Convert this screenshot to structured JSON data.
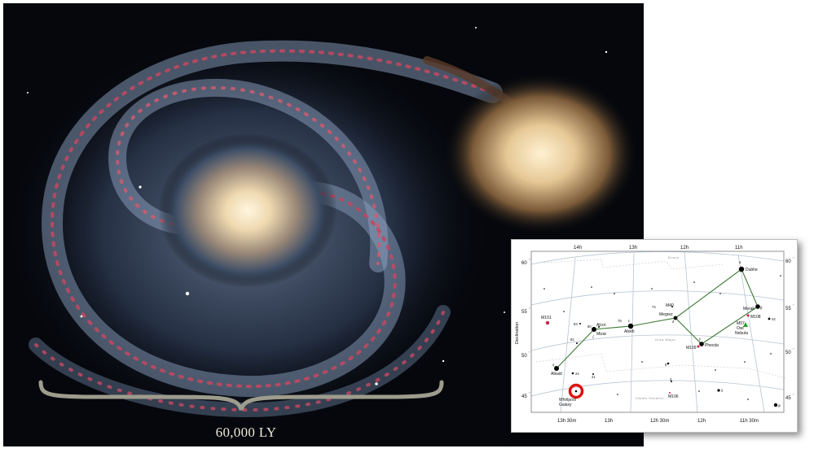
{
  "photo": {
    "scale_label": "60,000 LY"
  },
  "star_chart": {
    "ra_top": [
      "14h",
      "13h",
      "12h",
      "11h"
    ],
    "ra_bottom": [
      "13h 30m",
      "13h",
      "12h 30m",
      "12h",
      "11h 30m"
    ],
    "dec_left": [
      "60",
      "55",
      "50",
      "45"
    ],
    "dec_right": [
      "60",
      "55",
      "50",
      "45"
    ],
    "dec_unit": "°",
    "axis_label": "Declination",
    "constellation_top": "Draco",
    "constellation_mid": "Ursa Major",
    "constellation_bottom": "Canes Venatici",
    "stars": {
      "dubhe": "Dubhe",
      "merak": "Merak",
      "megrez": "Megrez",
      "alioth": "Alioth",
      "mizar": "Mizar",
      "alcor": "Alcor",
      "alkaid": "Alkaid",
      "phecda": "Phecda"
    },
    "objects": {
      "m101": "M101",
      "m40": "M40",
      "m108": "M108",
      "m97": "M97",
      "owl": "Owl",
      "nebula": "Nebula",
      "m109": "M109",
      "m106": "M106",
      "whirlpool": "Whirlpool",
      "galaxy": "Galaxy"
    },
    "numbers": {
      "n83": "83",
      "n82": "82",
      "n80": "80",
      "n78": "78",
      "n74": "74",
      "n24": "24",
      "n21": "21",
      "n5": "5",
      "n44": "44",
      "n3": "3"
    },
    "greek": {
      "alpha": "α",
      "beta": "β",
      "gamma": "γ",
      "delta": "δ",
      "epsilon": "ε",
      "zeta": "ζ",
      "eta": "η",
      "chi": "χ",
      "psi": "φ"
    },
    "colors": {
      "asterism_line": "#3c7a32",
      "marker_ring": "#e01010",
      "owl_nebula": "#28a028",
      "galaxy_markers": "#d0204a"
    }
  }
}
